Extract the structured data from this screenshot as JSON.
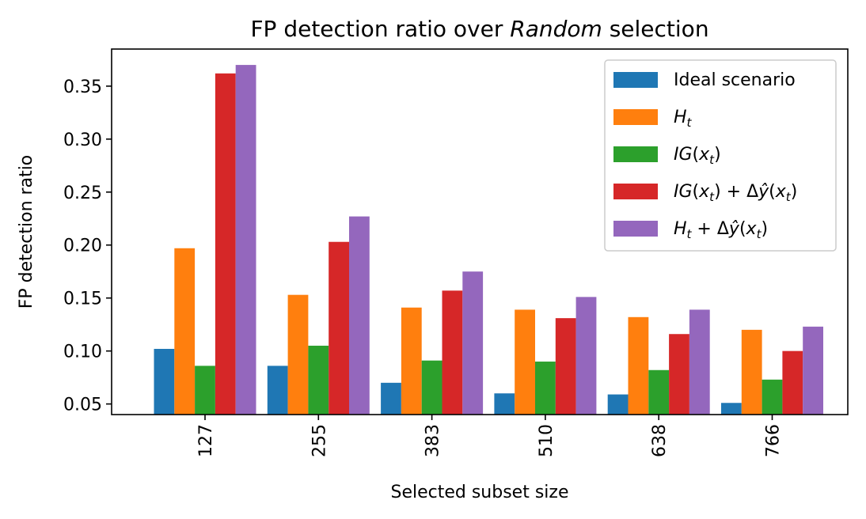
{
  "chart_data": {
    "type": "bar",
    "title": "FP detection ratio over Random selection",
    "title_parts": [
      {
        "text": "FP detection ratio over ",
        "italic": false
      },
      {
        "text": "Random",
        "italic": true
      },
      {
        "text": " selection",
        "italic": false
      }
    ],
    "xlabel": "Selected subset size",
    "ylabel": "FP detection ratio",
    "categories": [
      "127",
      "255",
      "383",
      "510",
      "638",
      "766"
    ],
    "ylim": [
      0.04,
      0.385
    ],
    "yticks": [
      "0.05",
      "0.10",
      "0.15",
      "0.20",
      "0.25",
      "0.30",
      "0.35"
    ],
    "legend_position": "top-right",
    "grid": false,
    "series": [
      {
        "name": "Ideal scenario",
        "color": "#1f77b4",
        "values": [
          0.102,
          0.086,
          0.07,
          0.06,
          0.059,
          0.051
        ]
      },
      {
        "name": "H_t",
        "color": "#ff7f0e",
        "values": [
          0.197,
          0.153,
          0.141,
          0.139,
          0.132,
          0.12
        ]
      },
      {
        "name": "IG(x_t)",
        "color": "#2ca02c",
        "values": [
          0.086,
          0.105,
          0.091,
          0.09,
          0.082,
          0.073
        ]
      },
      {
        "name": "IG(x_t) + Δŷ(x_t)",
        "color": "#d62728",
        "values": [
          0.362,
          0.203,
          0.157,
          0.131,
          0.116,
          0.1
        ]
      },
      {
        "name": "H_t + Δŷ(x_t)",
        "color": "#9467bd",
        "values": [
          0.37,
          0.227,
          0.175,
          0.151,
          0.139,
          0.123
        ]
      }
    ]
  }
}
